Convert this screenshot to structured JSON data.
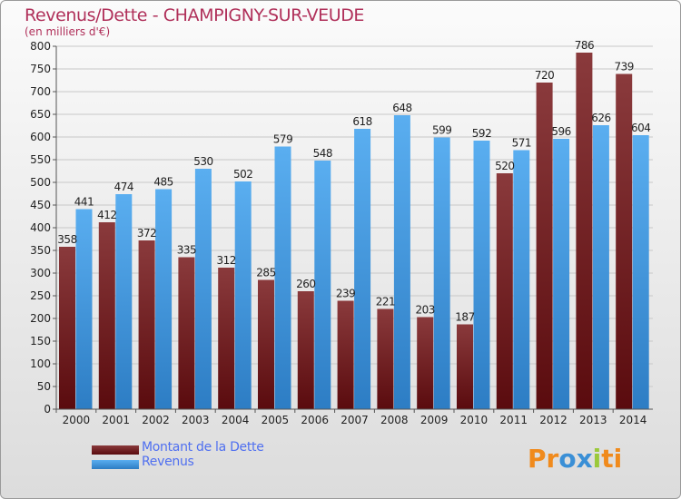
{
  "header": {
    "title": "Revenus/Dette - CHAMPIGNY-SUR-VEUDE",
    "subtitle": "(en milliers d'€)"
  },
  "legend": {
    "debt_label": "Montant de la Dette",
    "revenue_label": "Revenus"
  },
  "logo": {
    "text": "Proxiti",
    "letters": [
      "P",
      "r",
      "o",
      "x",
      "i",
      "t",
      "i"
    ],
    "colors": [
      "#f08a1c",
      "#f08a1c",
      "#3a8fd6",
      "#3a8fd6",
      "#9bc93a",
      "#f08a1c",
      "#f08a1c"
    ]
  },
  "colors": {
    "debt_dark": "#5a0b0e",
    "debt_light": "#8a3a3c",
    "revenue_dark": "#2d7dc4",
    "revenue_light": "#5aaef0",
    "axis_text": "#222222",
    "grid": "#c8c8c8"
  },
  "chart_data": {
    "type": "bar",
    "title": "Revenus/Dette - CHAMPIGNY-SUR-VEUDE",
    "ylabel": "(en milliers d'€)",
    "xlabel": "",
    "ylim": [
      0,
      800
    ],
    "ytick_step": 50,
    "grid": true,
    "legend_position": "bottom-left",
    "categories": [
      "2000",
      "2001",
      "2002",
      "2003",
      "2004",
      "2005",
      "2006",
      "2007",
      "2008",
      "2009",
      "2010",
      "2011",
      "2012",
      "2013",
      "2014"
    ],
    "series": [
      {
        "name": "Montant de la Dette",
        "values": [
          358,
          412,
          372,
          335,
          312,
          285,
          260,
          239,
          221,
          203,
          187,
          520,
          720,
          786,
          739
        ]
      },
      {
        "name": "Revenus",
        "values": [
          441,
          474,
          485,
          530,
          502,
          579,
          548,
          618,
          648,
          599,
          592,
          571,
          596,
          626,
          604
        ]
      }
    ]
  }
}
